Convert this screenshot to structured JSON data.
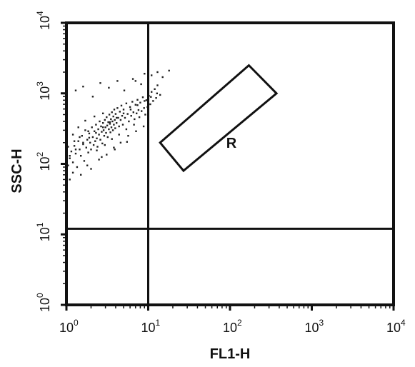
{
  "chart_data": {
    "type": "scatter",
    "title": "",
    "xlabel": "FL1-H",
    "ylabel": "SSC-H",
    "x_scale": "log",
    "y_scale": "log",
    "xlim": [
      1,
      10000
    ],
    "ylim": [
      1,
      10000
    ],
    "ticks": [
      {
        "base": "10",
        "exp": "0",
        "value": 1
      },
      {
        "base": "10",
        "exp": "1",
        "value": 10
      },
      {
        "base": "10",
        "exp": "2",
        "value": 100
      },
      {
        "base": "10",
        "exp": "3",
        "value": 1000
      },
      {
        "base": "10",
        "exp": "4",
        "value": 10000
      }
    ],
    "quadrant_lines": {
      "x": 10,
      "y": 12
    },
    "gate": {
      "label": "R",
      "vertices": [
        [
          14,
          200
        ],
        [
          170,
          2500
        ],
        [
          370,
          1000
        ],
        [
          27,
          80
        ]
      ]
    },
    "points": [
      [
        1.0,
        80
      ],
      [
        1.05,
        95
      ],
      [
        1.1,
        120
      ],
      [
        1.15,
        150
      ],
      [
        1.2,
        105
      ],
      [
        1.25,
        180
      ],
      [
        1.3,
        140
      ],
      [
        1.35,
        90
      ],
      [
        1.4,
        210
      ],
      [
        1.45,
        160
      ],
      [
        1.5,
        130
      ],
      [
        1.55,
        250
      ],
      [
        1.6,
        190
      ],
      [
        1.65,
        110
      ],
      [
        1.7,
        300
      ],
      [
        1.75,
        170
      ],
      [
        1.8,
        220
      ],
      [
        1.85,
        145
      ],
      [
        1.9,
        270
      ],
      [
        1.95,
        200
      ],
      [
        2.0,
        160
      ],
      [
        2.05,
        330
      ],
      [
        2.1,
        240
      ],
      [
        2.15,
        185
      ],
      [
        2.2,
        290
      ],
      [
        2.25,
        210
      ],
      [
        2.3,
        360
      ],
      [
        2.35,
        230
      ],
      [
        2.4,
        175
      ],
      [
        2.45,
        310
      ],
      [
        2.5,
        260
      ],
      [
        2.55,
        400
      ],
      [
        2.6,
        220
      ],
      [
        2.65,
        340
      ],
      [
        2.7,
        285
      ],
      [
        2.75,
        195
      ],
      [
        2.8,
        380
      ],
      [
        2.85,
        300
      ],
      [
        2.9,
        250
      ],
      [
        2.95,
        420
      ],
      [
        3.0,
        330
      ],
      [
        3.05,
        275
      ],
      [
        3.1,
        460
      ],
      [
        3.15,
        350
      ],
      [
        3.2,
        240
      ],
      [
        3.25,
        390
      ],
      [
        3.3,
        310
      ],
      [
        3.35,
        500
      ],
      [
        3.4,
        370
      ],
      [
        3.45,
        280
      ],
      [
        3.5,
        430
      ],
      [
        3.55,
        330
      ],
      [
        3.6,
        540
      ],
      [
        3.65,
        400
      ],
      [
        3.7,
        300
      ],
      [
        3.75,
        470
      ],
      [
        3.8,
        360
      ],
      [
        3.85,
        590
      ],
      [
        3.9,
        420
      ],
      [
        3.95,
        320
      ],
      [
        4.0,
        510
      ],
      [
        4.1,
        380
      ],
      [
        4.2,
        620
      ],
      [
        4.3,
        450
      ],
      [
        4.4,
        340
      ],
      [
        4.5,
        550
      ],
      [
        4.6,
        420
      ],
      [
        4.7,
        670
      ],
      [
        4.8,
        480
      ],
      [
        4.9,
        360
      ],
      [
        5.0,
        590
      ],
      [
        5.2,
        450
      ],
      [
        5.4,
        720
      ],
      [
        5.6,
        510
      ],
      [
        5.8,
        400
      ],
      [
        6.0,
        640
      ],
      [
        6.2,
        480
      ],
      [
        6.4,
        760
      ],
      [
        6.6,
        540
      ],
      [
        6.8,
        430
      ],
      [
        7.0,
        690
      ],
      [
        7.2,
        520
      ],
      [
        7.4,
        810
      ],
      [
        7.6,
        580
      ],
      [
        7.8,
        460
      ],
      [
        8.0,
        740
      ],
      [
        8.3,
        560
      ],
      [
        8.6,
        880
      ],
      [
        8.9,
        620
      ],
      [
        9.2,
        500
      ],
      [
        9.5,
        800
      ],
      [
        9.8,
        640
      ],
      [
        10.2,
        920
      ],
      [
        10.6,
        700
      ],
      [
        11.0,
        1050
      ],
      [
        11.5,
        780
      ],
      [
        12.0,
        1150
      ],
      [
        12.5,
        860
      ],
      [
        13.0,
        1300
      ],
      [
        14.0,
        950
      ],
      [
        1.3,
        1100
      ],
      [
        1.6,
        1250
      ],
      [
        2.1,
        900
      ],
      [
        2.6,
        1400
      ],
      [
        3.3,
        1200
      ],
      [
        4.2,
        1500
      ],
      [
        5.1,
        1100
      ],
      [
        6.5,
        1600
      ],
      [
        8.2,
        1350
      ],
      [
        11.0,
        1800
      ],
      [
        15.0,
        1700
      ],
      [
        18.0,
        2100
      ],
      [
        13.0,
        2000
      ],
      [
        9.0,
        1900
      ],
      [
        7.0,
        1500
      ],
      [
        1.2,
        260
      ],
      [
        1.4,
        330
      ],
      [
        1.7,
        410
      ],
      [
        2.2,
        470
      ],
      [
        2.8,
        520
      ],
      [
        1.1,
        60
      ],
      [
        1.5,
        70
      ],
      [
        2.0,
        85
      ],
      [
        2.5,
        115
      ],
      [
        3.1,
        135
      ],
      [
        3.8,
        170
      ],
      [
        4.6,
        200
      ],
      [
        5.7,
        250
      ],
      [
        7.1,
        290
      ],
      [
        8.8,
        340
      ],
      [
        1.05,
        175
      ],
      [
        1.25,
        210
      ],
      [
        1.45,
        240
      ],
      [
        1.85,
        290
      ],
      [
        2.35,
        155
      ],
      [
        2.95,
        185
      ],
      [
        3.6,
        225
      ],
      [
        4.4,
        260
      ],
      [
        5.4,
        310
      ],
      [
        6.7,
        360
      ],
      [
        1.0,
        100
      ],
      [
        1.1,
        130
      ],
      [
        1.3,
        160
      ],
      [
        1.6,
        200
      ],
      [
        1.9,
        235
      ],
      [
        2.3,
        275
      ],
      [
        2.8,
        330
      ],
      [
        3.4,
        390
      ],
      [
        4.1,
        450
      ],
      [
        5.0,
        520
      ],
      [
        6.1,
        590
      ],
      [
        7.4,
        680
      ],
      [
        9.0,
        780
      ],
      [
        10.8,
        890
      ],
      [
        12.8,
        1000
      ],
      [
        1.2,
        75
      ],
      [
        1.8,
        95
      ],
      [
        2.7,
        125
      ],
      [
        3.9,
        160
      ],
      [
        5.5,
        205
      ]
    ]
  }
}
